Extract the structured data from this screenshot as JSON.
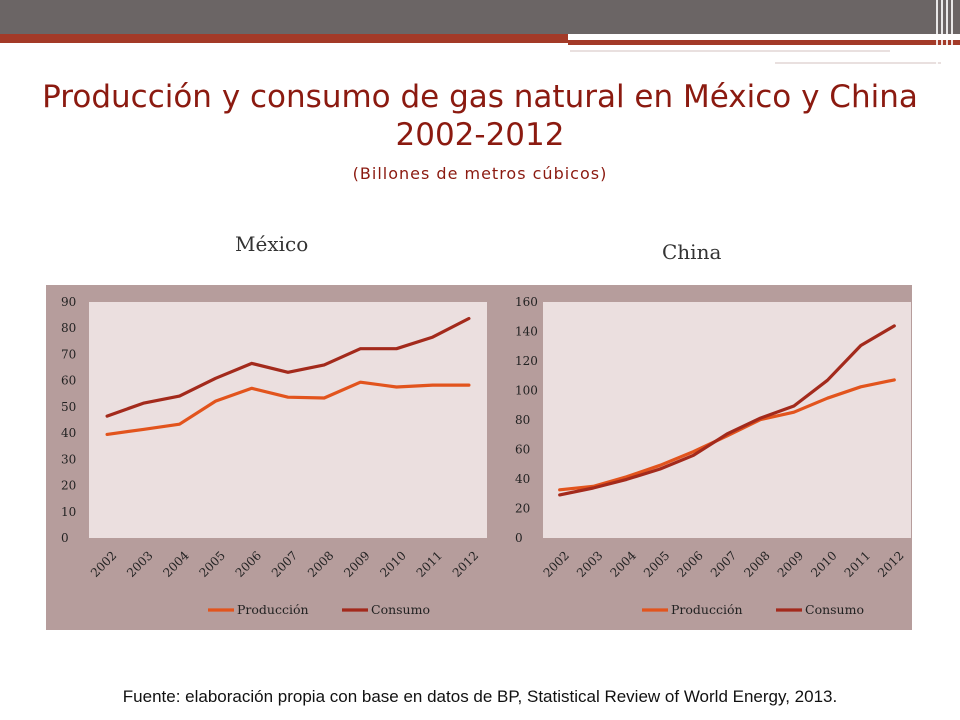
{
  "slide": {
    "title_line1": "Producción y consumo de gas natural en México y China",
    "title_line2": "2002-2012",
    "subtitle": "(Billones de metros cúbicos)",
    "footer": "Fuente: elaboración propia con base en datos de BP, Statistical Review of World Energy, 2013."
  },
  "colors": {
    "produccion": "#e2541d",
    "consumo": "#a32a1c",
    "panel": "#b69d9c",
    "plot": "#ebdfdf"
  },
  "chart_data": [
    {
      "type": "line",
      "title": "México",
      "categories": [
        "2002",
        "2003",
        "2004",
        "2005",
        "2006",
        "2007",
        "2008",
        "2009",
        "2010",
        "2011",
        "2012"
      ],
      "ylim": [
        0,
        90
      ],
      "yticks": [
        "0",
        "10",
        "20",
        "30",
        "40",
        "50",
        "60",
        "70",
        "80",
        "90"
      ],
      "series": [
        {
          "name": "Producción",
          "values": [
            39.5,
            41.4,
            43.4,
            52.2,
            57.1,
            53.7,
            53.4,
            59.4,
            57.6,
            58.3,
            58.3
          ]
        },
        {
          "name": "Consumo",
          "values": [
            46.5,
            51.4,
            54.1,
            60.9,
            66.6,
            63.2,
            66.0,
            72.2,
            72.2,
            76.6,
            83.7
          ]
        }
      ],
      "legend": "bottom"
    },
    {
      "type": "line",
      "title": "China",
      "categories": [
        "2002",
        "2003",
        "2004",
        "2005",
        "2006",
        "2007",
        "2008",
        "2009",
        "2010",
        "2011",
        "2012"
      ],
      "ylim": [
        0,
        160
      ],
      "yticks": [
        "0",
        "20",
        "40",
        "60",
        "80",
        "100",
        "120",
        "140",
        "160"
      ],
      "series": [
        {
          "name": "Producción",
          "values": [
            32.7,
            35.0,
            41.5,
            49.3,
            58.6,
            69.2,
            80.3,
            85.3,
            94.8,
            102.5,
            107.2
          ]
        },
        {
          "name": "Consumo",
          "values": [
            29.2,
            33.9,
            39.7,
            46.8,
            56.1,
            70.5,
            81.3,
            89.5,
            106.9,
            130.5,
            143.8
          ]
        }
      ],
      "legend": "bottom"
    }
  ]
}
